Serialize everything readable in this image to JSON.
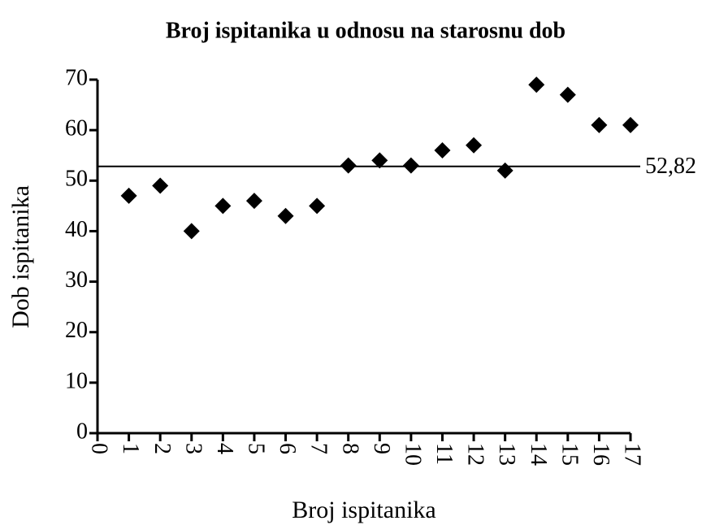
{
  "chart_data": {
    "type": "scatter",
    "title": "Broj ispitanika u odnosu na starosnu dob",
    "x_label": "Broj ispitanika",
    "y_label": "Dob ispitanika",
    "x": [
      1,
      2,
      3,
      4,
      5,
      6,
      7,
      8,
      9,
      10,
      11,
      12,
      13,
      14,
      15,
      16,
      17
    ],
    "values": [
      47,
      49,
      40,
      45,
      46,
      43,
      45,
      53,
      54,
      53,
      56,
      57,
      52,
      69,
      67,
      61,
      61
    ],
    "color": "#000000",
    "xlim": [
      0,
      17
    ],
    "xticks": [
      0,
      1,
      2,
      3,
      4,
      5,
      6,
      7,
      8,
      9,
      10,
      11,
      12,
      13,
      14,
      15,
      16,
      17
    ],
    "ylim": [
      0,
      70
    ],
    "yticks": [
      0,
      10,
      20,
      30,
      40,
      50,
      60,
      70
    ],
    "mean_line": {
      "value": 52.82,
      "label": "52,82"
    },
    "grid": false
  }
}
